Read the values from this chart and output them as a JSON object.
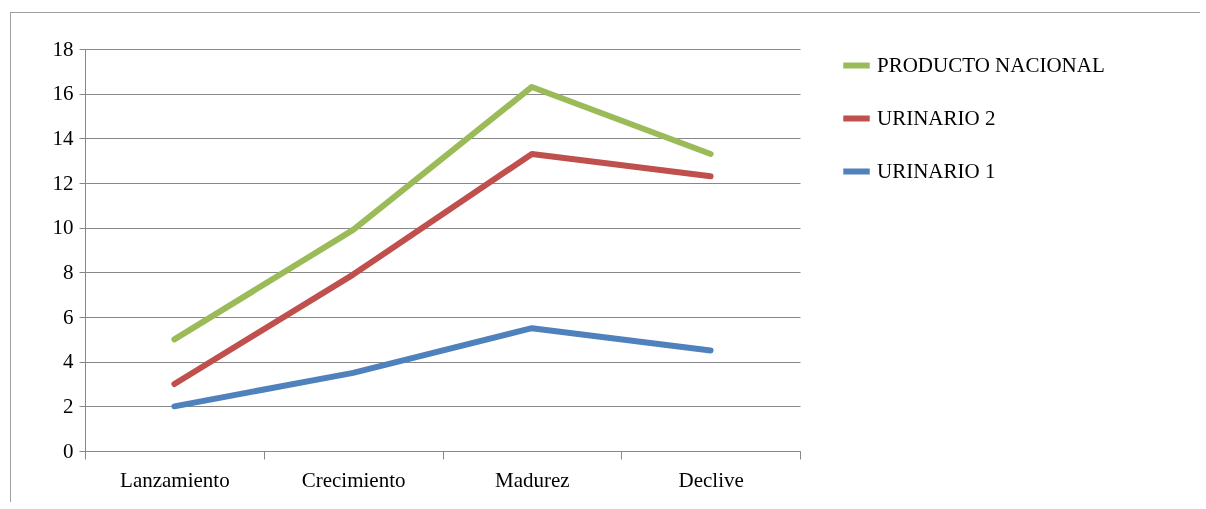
{
  "chart_data": {
    "type": "line",
    "categories": [
      "Lanzamiento",
      "Crecimiento",
      "Madurez",
      "Declive"
    ],
    "series": [
      {
        "name": "PRODUCTO NACIONAL",
        "color": "#9bbb59",
        "values": [
          5,
          9.9,
          16.3,
          13.3
        ]
      },
      {
        "name": "URINARIO 2",
        "color": "#c0504d",
        "values": [
          3,
          7.9,
          13.3,
          12.3
        ]
      },
      {
        "name": "URINARIO 1",
        "color": "#4f81bd",
        "values": [
          2,
          3.5,
          5.5,
          4.5
        ]
      }
    ],
    "ylim": [
      0,
      18
    ],
    "yticks": [
      0,
      2,
      4,
      6,
      8,
      10,
      12,
      14,
      16,
      18
    ],
    "grid": "y",
    "legend": "right",
    "line_style": "solid",
    "marker": "none"
  }
}
